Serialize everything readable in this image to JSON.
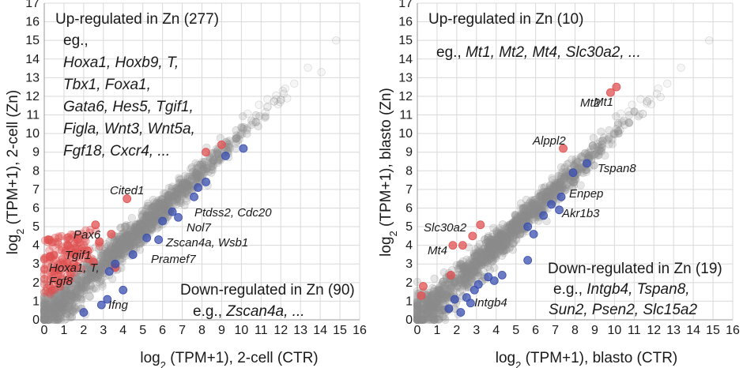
{
  "chart_data": [
    {
      "type": "scatter",
      "panel": "2-cell",
      "xlabel_prefix": "log",
      "xlabel_sub": "2",
      "xlabel_rest": " (TPM+1), 2-cell (CTR)",
      "ylabel_prefix": "log",
      "ylabel_sub": "2",
      "ylabel_rest": " (TPM+1), 2-cell (Zn)",
      "xlim": [
        0,
        16
      ],
      "ylim": [
        0,
        17
      ],
      "x_ticks": [
        0,
        1,
        2,
        3,
        4,
        5,
        6,
        7,
        8,
        9,
        10,
        11,
        12,
        13,
        14,
        15,
        16
      ],
      "y_ticks": [
        0,
        1,
        2,
        3,
        4,
        5,
        6,
        7,
        8,
        9,
        10,
        11,
        12,
        13,
        14,
        15,
        16,
        17
      ],
      "grid": true,
      "annotations": {
        "up_title": "Up-regulated in Zn (277)",
        "up_eg": "eg.,",
        "up_lines": [
          "Hoxa1, Hoxb9, T,",
          "Tbx1, Foxa1,",
          "Gata6, Hes5, Tgif1,",
          "Figla, Wnt3, Wnt5a,",
          "Fgf18, Cxcr4, ..."
        ],
        "down_title": "Down-regulated in Zn (90)",
        "down_eg": "e.g., ",
        "down_gene": "Zscan4a, ..."
      },
      "gene_labels": [
        "Cited1",
        "Ptdss2, Cdc20",
        "Nol7",
        "Zscan4a, Wsb1",
        "Pramef7",
        "Pax6",
        "Tgif1",
        "Hoxa1, T,",
        "Fgf8",
        "Ifng"
      ],
      "series": [
        {
          "name": "Not significant",
          "color": "#8c8c8c"
        },
        {
          "name": "Up-regulated",
          "color": "#e05050",
          "points": [
            [
              9.0,
              9.4
            ],
            [
              8.2,
              9.0
            ],
            [
              4.2,
              6.5
            ],
            [
              2.6,
              5.1
            ],
            [
              1.7,
              4.3
            ],
            [
              3.4,
              4.6
            ],
            [
              2.8,
              4.2
            ],
            [
              1.2,
              4.0
            ],
            [
              0.3,
              3.4
            ],
            [
              0.2,
              4.3
            ],
            [
              2.2,
              3.7
            ],
            [
              1.5,
              3.0
            ],
            [
              2.5,
              3.1
            ],
            [
              3.6,
              2.8
            ]
          ]
        },
        {
          "name": "Down-regulated",
          "color": "#3a4fb0",
          "points": [
            [
              10.1,
              9.2
            ],
            [
              9.2,
              8.8
            ],
            [
              8.2,
              7.4
            ],
            [
              7.8,
              7.1
            ],
            [
              7.6,
              6.6
            ],
            [
              6.5,
              5.8
            ],
            [
              6.0,
              5.3
            ],
            [
              5.2,
              4.4
            ],
            [
              4.5,
              3.5
            ],
            [
              3.3,
              2.6
            ],
            [
              3.6,
              3.0
            ],
            [
              5.8,
              4.3
            ],
            [
              6.8,
              5.5
            ],
            [
              4.0,
              1.6
            ],
            [
              3.2,
              1.1
            ],
            [
              2.0,
              0.4
            ],
            [
              2.9,
              0.8
            ]
          ]
        }
      ]
    },
    {
      "type": "scatter",
      "panel": "blasto",
      "xlabel_prefix": "log",
      "xlabel_sub": "2",
      "xlabel_rest": " (TPM+1), blasto (CTR)",
      "ylabel_prefix": "log",
      "ylabel_sub": "2",
      "ylabel_rest": " (TPM+1), blasto (Zn)",
      "xlim": [
        0,
        16
      ],
      "ylim": [
        0,
        17
      ],
      "x_ticks": [
        0,
        1,
        2,
        3,
        4,
        5,
        6,
        7,
        8,
        9,
        10,
        11,
        12,
        13,
        14,
        15,
        16
      ],
      "y_ticks": [
        0,
        1,
        2,
        3,
        4,
        5,
        6,
        7,
        8,
        9,
        10,
        11,
        12,
        13,
        14,
        15,
        16,
        17
      ],
      "grid": true,
      "annotations": {
        "up_title": "Up-regulated in Zn (10)",
        "up_eg": "eg., ",
        "up_genes": "Mt1, Mt2, Mt4, Slc30a2, ...",
        "down_title": "Down-regulated in Zn (19)",
        "down_eg": "e.g., ",
        "down_line1": "Intgb4, Tspan8,",
        "down_line2": "Sun2, Psen2, Slc15a2"
      },
      "gene_labels": [
        "Mt1",
        "Mt2",
        "Alppl2",
        "Tspan8",
        "Enpep",
        "Akr1b3",
        "Slc30a2",
        "Mt4",
        "Intgb4"
      ],
      "series": [
        {
          "name": "Not significant",
          "color": "#8c8c8c"
        },
        {
          "name": "Up-regulated",
          "color": "#e05050",
          "points": [
            [
              10.1,
              12.5
            ],
            [
              9.8,
              12.2
            ],
            [
              7.4,
              9.2
            ],
            [
              2.8,
              4.5
            ],
            [
              3.2,
              5.1
            ],
            [
              1.8,
              4.0
            ],
            [
              2.3,
              4.0
            ],
            [
              1.7,
              2.4
            ],
            [
              0.3,
              1.8
            ],
            [
              0.2,
              1.3
            ]
          ]
        },
        {
          "name": "Down-regulated",
          "color": "#3a4fb0",
          "points": [
            [
              8.6,
              8.4
            ],
            [
              7.9,
              7.9
            ],
            [
              7.3,
              6.6
            ],
            [
              6.8,
              6.2
            ],
            [
              7.2,
              5.9
            ],
            [
              5.6,
              5.0
            ],
            [
              5.9,
              4.6
            ],
            [
              5.6,
              3.2
            ],
            [
              3.6,
              2.3
            ],
            [
              3.1,
              1.9
            ],
            [
              2.9,
              1.6
            ],
            [
              2.5,
              1.2
            ],
            [
              1.9,
              1.1
            ],
            [
              1.6,
              0.6
            ],
            [
              2.2,
              0.4
            ],
            [
              4.3,
              2.4
            ],
            [
              6.4,
              5.6
            ],
            [
              3.9,
              2.1
            ],
            [
              2.7,
              0.9
            ]
          ]
        }
      ]
    }
  ]
}
